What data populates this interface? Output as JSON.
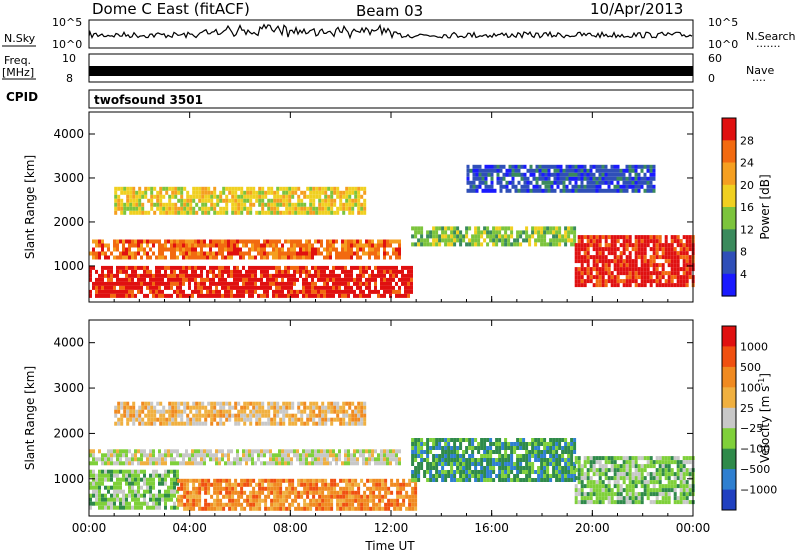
{
  "header": {
    "title": "Dome C East (fitACF)",
    "beam": "Beam 03",
    "date": "10/Apr/2013"
  },
  "strips": {
    "nsky_label": "N.Sky",
    "nsearch_label": "N.Search",
    "nsky_ticks": [
      "10^5",
      "10^0"
    ],
    "nsearch_ticks": [
      "10^5",
      "10^0"
    ],
    "freq_label_1": "Freq.",
    "freq_label_2": "[MHz]",
    "freq_ticks": [
      "10",
      "8"
    ],
    "nave_label": "Nave",
    "nave_ticks": [
      "60",
      "0"
    ],
    "cpid_label": "CPID",
    "cpid_value": "twofsound 3501",
    "dots": "·······",
    "dots_short": "····"
  },
  "chart_data": [
    {
      "type": "heatmap",
      "name": "power",
      "ylabel": "Slant Range [km]",
      "xlabel": "Time UT",
      "x_ticks": [
        "00:00",
        "04:00",
        "08:00",
        "12:00",
        "16:00",
        "20:00",
        "00:00"
      ],
      "y_ticks": [
        "1000",
        "2000",
        "3000",
        "4000"
      ],
      "xlim_hours": [
        0,
        24
      ],
      "ylim_km": [
        180,
        4500
      ],
      "colorbar_label": "Power [dB]",
      "colorbar_ticks": [
        "4",
        "8",
        "12",
        "16",
        "20",
        "24",
        "28"
      ],
      "colorbar_colors": [
        "#1a1aff",
        "#2f4fb8",
        "#3a8a5c",
        "#7cc43c",
        "#f0d020",
        "#f59f20",
        "#f26a10",
        "#e01010"
      ],
      "regions": [
        {
          "t0": 0.0,
          "t1": 12.8,
          "r0": 350,
          "r1": 1000,
          "level": 7
        },
        {
          "t0": 0.0,
          "t1": 12.3,
          "r0": 1150,
          "r1": 1600,
          "level": 6
        },
        {
          "t0": 12.8,
          "t1": 19.3,
          "r0": 1500,
          "r1": 1900,
          "level": 3
        },
        {
          "t0": 19.3,
          "t1": 24.0,
          "r0": 600,
          "r1": 1700,
          "level": 7
        },
        {
          "t0": 1.0,
          "t1": 11.0,
          "r0": 2200,
          "r1": 2800,
          "level": 4
        },
        {
          "t0": 15.0,
          "t1": 22.5,
          "r0": 2700,
          "r1": 3300,
          "level": 1
        }
      ]
    },
    {
      "type": "heatmap",
      "name": "velocity",
      "ylabel": "Slant Range [km]",
      "xlabel": "Time UT",
      "x_ticks": [
        "00:00",
        "04:00",
        "08:00",
        "12:00",
        "16:00",
        "20:00",
        "00:00"
      ],
      "y_ticks": [
        "1000",
        "2000",
        "3000",
        "4000"
      ],
      "xlim_hours": [
        0,
        24
      ],
      "ylim_km": [
        180,
        4500
      ],
      "colorbar_label": "Velocity [m s",
      "colorbar_unit_sup": "-1",
      "colorbar_ticks": [
        "1000",
        "500",
        "100",
        "25",
        "−25",
        "−100",
        "−500",
        "−1000"
      ],
      "colorbar_colors": [
        "#2040c0",
        "#2f7fd0",
        "#2f8a4a",
        "#7fd03a",
        "#c8c8c8",
        "#f0b040",
        "#f08a20",
        "#f05010",
        "#e01010"
      ],
      "regions": [
        {
          "t0": 0.0,
          "t1": 3.5,
          "r0": 400,
          "r1": 1200,
          "level": 3
        },
        {
          "t0": 3.5,
          "t1": 13.0,
          "r0": 350,
          "r1": 1000,
          "level": 6
        },
        {
          "t0": 0.0,
          "t1": 12.3,
          "r0": 1300,
          "r1": 1650,
          "level": 4
        },
        {
          "t0": 12.8,
          "t1": 19.3,
          "r0": 1000,
          "r1": 1900,
          "level": 2
        },
        {
          "t0": 19.3,
          "t1": 24.0,
          "r0": 500,
          "r1": 1500,
          "level": 3
        },
        {
          "t0": 1.0,
          "t1": 11.0,
          "r0": 2200,
          "r1": 2700,
          "level": 5
        }
      ]
    }
  ]
}
